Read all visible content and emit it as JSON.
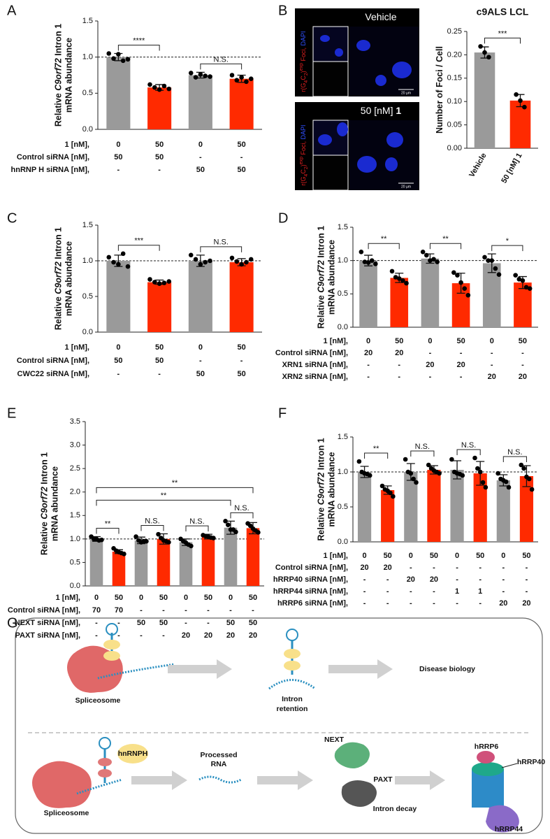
{
  "chart_data": [
    {
      "type": "bar",
      "panel": "A",
      "ylabel": [
        [
          {
            "text": "Relative "
          },
          {
            "text": "C9orf72",
            "style": "italic"
          },
          {
            "text": " Intron 1"
          }
        ],
        [
          {
            "text": "mRNA abundance"
          }
        ]
      ],
      "values": [
        1.0,
        0.58,
        0.75,
        0.7
      ],
      "errors": [
        0.05,
        0.04,
        0.04,
        0.05
      ],
      "points": [
        [
          1.05,
          0.98,
          1.04,
          0.95,
          0.97
        ],
        [
          0.62,
          0.58,
          0.55,
          0.6,
          0.56
        ],
        [
          0.78,
          0.72,
          0.76,
          0.74,
          0.73
        ],
        [
          0.75,
          0.68,
          0.72,
          0.66,
          0.7
        ]
      ],
      "bar_colors": [
        "#9a9a9a",
        "#ff2a00",
        "#9a9a9a",
        "#ff2a00"
      ],
      "ylim": [
        0,
        1.5
      ],
      "yticks": [
        {
          "value": 0,
          "label": "0.0"
        },
        {
          "value": 0.5,
          "label": "0.5"
        },
        {
          "value": 1,
          "label": "1.0"
        },
        {
          "value": 1.5,
          "label": "1.5"
        }
      ],
      "reference_line": 1.0,
      "significance": [
        {
          "bars": [
            0,
            1
          ],
          "label": "****"
        },
        {
          "bars": [
            2,
            3
          ],
          "label": "N.S."
        }
      ],
      "conditions": [
        {
          "label": "1 [nM],",
          "values": [
            "0",
            "50",
            "0",
            "50"
          ]
        },
        {
          "label": "Control siRNA [nM],",
          "values": [
            "50",
            "50",
            "-",
            "-"
          ]
        },
        {
          "label": "hnRNP H siRNA [nM],",
          "values": [
            "-",
            "-",
            "50",
            "50"
          ]
        }
      ]
    },
    {
      "type": "bar",
      "panel": "B",
      "title": "c9ALS LCL",
      "ylabel": [
        [
          {
            "text": "Number of Foci / Cell"
          }
        ]
      ],
      "categories": [
        "Vehicle",
        "50 [nM] 1"
      ],
      "values": [
        0.205,
        0.102
      ],
      "errors": [
        0.012,
        0.013
      ],
      "points": [
        [
          0.218,
          0.205,
          0.195
        ],
        [
          0.115,
          0.102,
          0.088
        ]
      ],
      "bar_colors": [
        "#9a9a9a",
        "#ff2a00"
      ],
      "ylim": [
        0,
        0.25
      ],
      "yticks": [
        {
          "value": 0,
          "label": "0.00"
        },
        {
          "value": 0.05,
          "label": "0.05"
        },
        {
          "value": 0.1,
          "label": "0.10"
        },
        {
          "value": 0.15,
          "label": "0.15"
        },
        {
          "value": 0.2,
          "label": "0.20"
        },
        {
          "value": 0.25,
          "label": "0.25"
        }
      ],
      "significance": [
        {
          "bars": [
            0,
            1
          ],
          "label": "***"
        }
      ]
    },
    {
      "type": "bar",
      "panel": "C",
      "ylabel": [
        [
          {
            "text": "Relative "
          },
          {
            "text": "C9orf72",
            "style": "italic"
          },
          {
            "text": " Intron 1"
          }
        ],
        [
          {
            "text": "mRNA abundance"
          }
        ]
      ],
      "values": [
        1.0,
        0.7,
        1.0,
        0.98
      ],
      "errors": [
        0.08,
        0.03,
        0.08,
        0.05
      ],
      "points": [
        [
          1.05,
          0.98,
          0.95,
          1.1,
          0.92
        ],
        [
          0.74,
          0.7,
          0.68,
          0.69,
          0.71
        ],
        [
          1.08,
          1.02,
          0.95,
          0.98,
          1.0
        ],
        [
          1.04,
          0.99,
          0.95,
          0.98,
          1.02
        ]
      ],
      "bar_colors": [
        "#9a9a9a",
        "#ff2a00",
        "#9a9a9a",
        "#ff2a00"
      ],
      "ylim": [
        0,
        1.5
      ],
      "yticks": [
        {
          "value": 0,
          "label": "0.0"
        },
        {
          "value": 0.5,
          "label": "0.5"
        },
        {
          "value": 1,
          "label": "1.0"
        },
        {
          "value": 1.5,
          "label": "1.5"
        }
      ],
      "reference_line": 1.0,
      "significance": [
        {
          "bars": [
            0,
            1
          ],
          "label": "***"
        },
        {
          "bars": [
            2,
            3
          ],
          "label": "N.S."
        }
      ],
      "conditions": [
        {
          "label": "1 [nM],",
          "values": [
            "0",
            "50",
            "0",
            "50"
          ]
        },
        {
          "label": "Control siRNA [nM],",
          "values": [
            "50",
            "50",
            "-",
            "-"
          ]
        },
        {
          "label": "CWC22 siRNA [nM],",
          "values": [
            "-",
            "-",
            "50",
            "50"
          ]
        }
      ]
    },
    {
      "type": "bar",
      "panel": "D",
      "ylabel": [
        [
          {
            "text": "Relative "
          },
          {
            "text": "C9orf72",
            "style": "italic"
          },
          {
            "text": " Intron 1"
          }
        ],
        [
          {
            "text": "mRNA abundance"
          }
        ]
      ],
      "values": [
        1.0,
        0.74,
        1.03,
        0.66,
        0.96,
        0.67
      ],
      "errors": [
        0.08,
        0.07,
        0.07,
        0.15,
        0.14,
        0.09
      ],
      "points": [
        [
          1.13,
          0.98,
          0.97,
          1.0,
          0.95
        ],
        [
          0.84,
          0.75,
          0.73,
          0.7,
          0.66
        ],
        [
          1.13,
          1.08,
          1.0,
          1.02,
          0.98
        ],
        [
          0.82,
          0.78,
          0.67,
          0.58,
          0.48
        ],
        [
          1.05,
          1.0,
          1.0,
          0.88,
          0.79
        ],
        [
          0.78,
          0.72,
          0.7,
          0.6,
          0.58
        ]
      ],
      "bar_colors": [
        "#9a9a9a",
        "#ff2a00",
        "#9a9a9a",
        "#ff2a00",
        "#9a9a9a",
        "#ff2a00"
      ],
      "ylim": [
        0,
        1.5
      ],
      "yticks": [
        {
          "value": 0,
          "label": "0.0"
        },
        {
          "value": 0.5,
          "label": "0.5"
        },
        {
          "value": 1,
          "label": "1.0"
        },
        {
          "value": 1.5,
          "label": "1.5"
        }
      ],
      "reference_line": 1.0,
      "significance": [
        {
          "bars": [
            0,
            1
          ],
          "label": "**"
        },
        {
          "bars": [
            2,
            3
          ],
          "label": "**"
        },
        {
          "bars": [
            4,
            5
          ],
          "label": "*"
        }
      ],
      "conditions": [
        {
          "label": "1 [nM],",
          "values": [
            "0",
            "50",
            "0",
            "50",
            "0",
            "50"
          ]
        },
        {
          "label": "Control siRNA [nM],",
          "values": [
            "20",
            "20",
            "-",
            "-",
            "-",
            "-"
          ]
        },
        {
          "label": "XRN1 siRNA [nM],",
          "values": [
            "-",
            "-",
            "20",
            "20",
            "-",
            "-"
          ]
        },
        {
          "label": "XRN2 siRNA [nM],",
          "values": [
            "-",
            "-",
            "-",
            "-",
            "20",
            "20"
          ]
        }
      ]
    },
    {
      "type": "bar",
      "panel": "E",
      "ylabel": [
        [
          {
            "text": "Relative "
          },
          {
            "text": "C9orf72",
            "style": "italic"
          },
          {
            "text": " Intron 1"
          }
        ],
        [
          {
            "text": "mRNA abundance"
          }
        ]
      ],
      "values": [
        1.0,
        0.73,
        0.97,
        1.0,
        0.93,
        1.05,
        1.24,
        1.23
      ],
      "errors": [
        0.05,
        0.04,
        0.07,
        0.11,
        0.07,
        0.05,
        0.14,
        0.12
      ],
      "points": [
        [
          1.05,
          1.0,
          1.0,
          0.97,
          0.98
        ],
        [
          0.8,
          0.75,
          0.72,
          0.7,
          0.68
        ],
        [
          1.05,
          0.97,
          0.93,
          0.95,
          0.95
        ],
        [
          1.1,
          1.02,
          0.97,
          0.95,
          0.93
        ],
        [
          1.0,
          0.95,
          0.92,
          0.88,
          0.85
        ],
        [
          1.08,
          1.06,
          1.05,
          1.03,
          1.02
        ],
        [
          1.38,
          1.3,
          1.2,
          1.2,
          1.15
        ],
        [
          1.33,
          1.28,
          1.22,
          1.18,
          1.14
        ]
      ],
      "bar_colors": [
        "#9a9a9a",
        "#ff2a00",
        "#9a9a9a",
        "#ff2a00",
        "#9a9a9a",
        "#ff2a00",
        "#9a9a9a",
        "#ff2a00"
      ],
      "ylim": [
        0,
        3.5
      ],
      "yticks": [
        {
          "value": 0,
          "label": "0.0"
        },
        {
          "value": 0.5,
          "label": "0.5"
        },
        {
          "value": 1,
          "label": "1.0"
        },
        {
          "value": 1.5,
          "label": "1.5"
        },
        {
          "value": 2,
          "label": "2.0"
        },
        {
          "value": 2.5,
          "label": "2.5"
        },
        {
          "value": 3,
          "label": "3.0"
        },
        {
          "value": 3.5,
          "label": "3.5"
        }
      ],
      "reference_line": 1.0,
      "significance": [
        {
          "bars": [
            0,
            1
          ],
          "label": "**"
        },
        {
          "bars": [
            2,
            3
          ],
          "label": "N.S."
        },
        {
          "bars": [
            4,
            5
          ],
          "label": "N.S."
        },
        {
          "bars": [
            6,
            7
          ],
          "label": "N.S."
        },
        {
          "bars": [
            0,
            6
          ],
          "label": "**"
        },
        {
          "bars": [
            0,
            7
          ],
          "label": "**"
        }
      ],
      "conditions": [
        {
          "label": "1 [nM],",
          "values": [
            "0",
            "50",
            "0",
            "50",
            "0",
            "50",
            "0",
            "50"
          ]
        },
        {
          "label": "Control siRNA [nM],",
          "values": [
            "70",
            "70",
            "-",
            "-",
            "-",
            "-",
            "-",
            "-"
          ]
        },
        {
          "label": "NEXT siRNA [nM],",
          "values": [
            "-",
            "-",
            "50",
            "50",
            "-",
            "-",
            "50",
            "50"
          ]
        },
        {
          "label": "PAXT siRNA [nM],",
          "values": [
            "-",
            "-",
            "-",
            "-",
            "20",
            "20",
            "20",
            "20"
          ]
        }
      ]
    },
    {
      "type": "bar",
      "panel": "F",
      "ylabel": [
        [
          {
            "text": "Relative "
          },
          {
            "text": "C9orf72",
            "style": "italic"
          },
          {
            "text": " Intron 1"
          }
        ],
        [
          {
            "text": "mRNA abundance"
          }
        ]
      ],
      "values": [
        1.0,
        0.74,
        1.0,
        1.03,
        1.03,
        0.98,
        0.88,
        0.94
      ],
      "errors": [
        0.08,
        0.06,
        0.12,
        0.06,
        0.13,
        0.17,
        0.08,
        0.15
      ],
      "points": [
        [
          1.15,
          1.0,
          0.98,
          0.97,
          0.95
        ],
        [
          0.8,
          0.75,
          0.73,
          0.7,
          0.65
        ],
        [
          1.18,
          1.0,
          0.98,
          0.9,
          0.85
        ],
        [
          1.1,
          1.05,
          1.02,
          1.0,
          0.98
        ],
        [
          1.18,
          1.0,
          0.98,
          0.97,
          0.95
        ],
        [
          1.2,
          1.05,
          1.0,
          0.85,
          0.78
        ],
        [
          0.98,
          0.9,
          0.88,
          0.86,
          0.78
        ],
        [
          1.1,
          1.05,
          0.93,
          0.9,
          0.75
        ]
      ],
      "bar_colors": [
        "#9a9a9a",
        "#ff2a00",
        "#9a9a9a",
        "#ff2a00",
        "#9a9a9a",
        "#ff2a00",
        "#9a9a9a",
        "#ff2a00"
      ],
      "ylim": [
        0,
        1.5
      ],
      "yticks": [
        {
          "value": 0,
          "label": "0.0"
        },
        {
          "value": 0.5,
          "label": "0.5"
        },
        {
          "value": 1,
          "label": "1.0"
        },
        {
          "value": 1.5,
          "label": "1.5"
        }
      ],
      "reference_line": 1.0,
      "significance": [
        {
          "bars": [
            0,
            1
          ],
          "label": "**"
        },
        {
          "bars": [
            2,
            3
          ],
          "label": "N.S."
        },
        {
          "bars": [
            4,
            5
          ],
          "label": "N.S."
        },
        {
          "bars": [
            6,
            7
          ],
          "label": "N.S."
        }
      ],
      "conditions": [
        {
          "label": "1 [nM],",
          "values": [
            "0",
            "50",
            "0",
            "50",
            "0",
            "50",
            "0",
            "50"
          ]
        },
        {
          "label": "Control siRNA [nM],",
          "values": [
            "20",
            "20",
            "-",
            "-",
            "-",
            "-",
            "-",
            "-"
          ]
        },
        {
          "label": "hRRP40 siRNA [nM],",
          "values": [
            "-",
            "-",
            "20",
            "20",
            "-",
            "-",
            "-",
            "-"
          ]
        },
        {
          "label": "hRRP44 siRNA [nM],",
          "values": [
            "-",
            "-",
            "-",
            "-",
            "1",
            "1",
            "-",
            "-"
          ]
        },
        {
          "label": "hRRP6 siRNA [nM],",
          "values": [
            "-",
            "-",
            "-",
            "-",
            "-",
            "-",
            "20",
            "20"
          ]
        }
      ]
    }
  ],
  "images": {
    "titles": [
      [
        {
          "text": "Vehicle"
        }
      ],
      [
        {
          "text": "50 [nM] "
        },
        {
          "text": "1",
          "style": "bold"
        }
      ]
    ],
    "stain_label": [
      {
        "text": "r(G"
      },
      {
        "text": "4",
        "style": "sub"
      },
      {
        "text": "C"
      },
      {
        "text": "2",
        "style": "sub"
      },
      {
        "text": ")"
      },
      {
        "text": "exp",
        "style": "sup"
      },
      {
        "text": " Foci, "
      },
      {
        "text": "DAPI",
        "color": "#3050ff"
      }
    ],
    "scale_bar": "20 µm"
  },
  "diagram": {
    "panel": "G",
    "spliceosome": "Spliceosome",
    "intron_retention": [
      "Intron",
      "retention"
    ],
    "disease": "Disease biology",
    "hnrnph": "hnRNPH",
    "processed_rna": [
      "Processed",
      "RNA"
    ],
    "next": "NEXT",
    "paxt": "PAXT",
    "intron_decay": "Intron decay",
    "hrrp6": "hRRP6",
    "hrrp40": "hRRP40",
    "hrrp44": "hRRP44"
  }
}
